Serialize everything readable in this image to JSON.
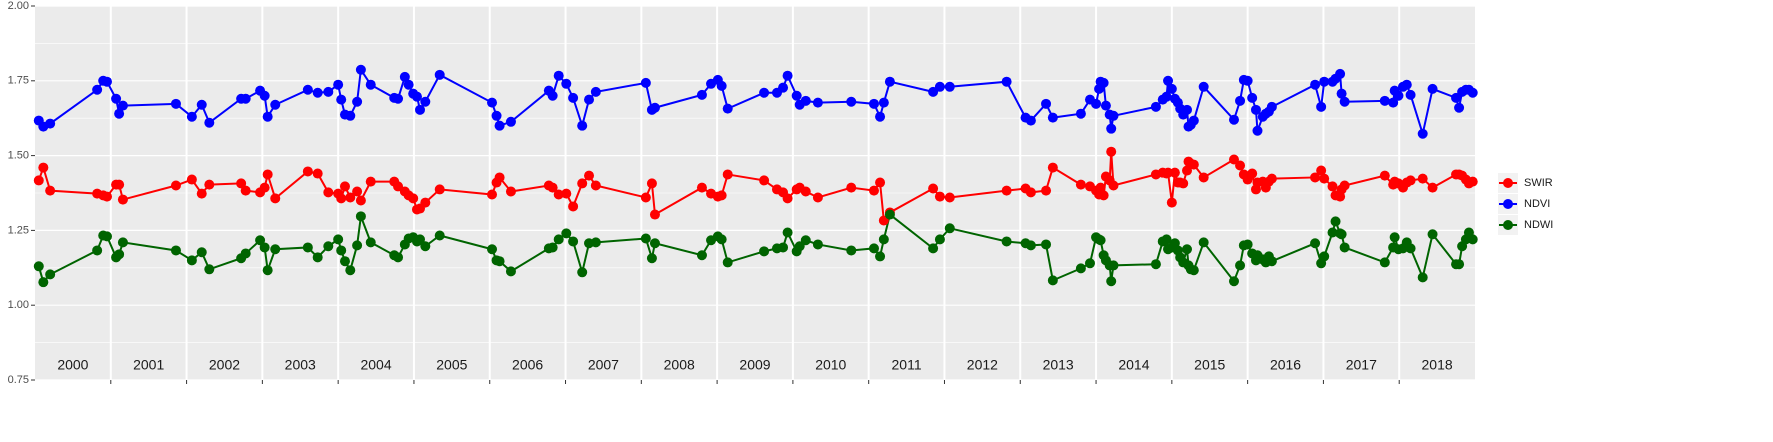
{
  "chart_data": {
    "type": "line",
    "x": [
      2000.05,
      2000.11,
      2000.2,
      2000.82,
      2000.9,
      2000.95,
      2001.07,
      2001.11,
      2001.16,
      2001.86,
      2002.07,
      2002.2,
      2002.3,
      2002.72,
      2002.78,
      2002.97,
      2003.03,
      2003.07,
      2003.17,
      2003.6,
      2003.73,
      2003.87,
      2004.0,
      2004.04,
      2004.09,
      2004.16,
      2004.25,
      2004.3,
      2004.43,
      2004.74,
      2004.79,
      2004.88,
      2004.93,
      2004.99,
      2005.04,
      2005.08,
      2005.15,
      2005.34,
      2006.03,
      2006.09,
      2006.13,
      2006.28,
      2006.78,
      2006.83,
      2006.91,
      2007.01,
      2007.1,
      2007.22,
      2007.31,
      2007.4,
      2008.06,
      2008.14,
      2008.18,
      2008.8,
      2008.92,
      2009.01,
      2009.06,
      2009.14,
      2009.62,
      2009.79,
      2009.87,
      2009.93,
      2010.05,
      2010.09,
      2010.17,
      2010.33,
      2010.77,
      2011.07,
      2011.15,
      2011.2,
      2011.28,
      2011.85,
      2011.94,
      2012.07,
      2012.82,
      2013.07,
      2013.14,
      2013.34,
      2013.43,
      2013.8,
      2013.92,
      2014.0,
      2014.04,
      2014.06,
      2014.1,
      2014.13,
      2014.18,
      2014.2,
      2014.23,
      2014.79,
      2014.88,
      2014.93,
      2014.95,
      2015.0,
      2015.04,
      2015.08,
      2015.11,
      2015.15,
      2015.2,
      2015.22,
      2015.25,
      2015.29,
      2015.42,
      2015.82,
      2015.9,
      2015.95,
      2016.0,
      2016.06,
      2016.11,
      2016.13,
      2016.2,
      2016.24,
      2016.28,
      2016.32,
      2016.89,
      2016.97,
      2017.01,
      2017.12,
      2017.16,
      2017.22,
      2017.24,
      2017.28,
      2017.81,
      2017.92,
      2017.94,
      2017.99,
      2018.05,
      2018.1,
      2018.15,
      2018.31,
      2018.44,
      2018.75,
      2018.79,
      2018.83,
      2018.88,
      2018.92,
      2018.97
    ],
    "series": [
      {
        "name": "SWIR",
        "color": "#ff0000",
        "values": [
          1.417,
          1.46,
          1.383,
          1.373,
          1.367,
          1.363,
          1.403,
          1.403,
          1.353,
          1.4,
          1.42,
          1.373,
          1.403,
          1.407,
          1.383,
          1.377,
          1.393,
          1.437,
          1.357,
          1.447,
          1.44,
          1.377,
          1.373,
          1.357,
          1.397,
          1.36,
          1.38,
          1.35,
          1.413,
          1.413,
          1.397,
          1.38,
          1.367,
          1.357,
          1.32,
          1.323,
          1.343,
          1.387,
          1.37,
          1.41,
          1.427,
          1.38,
          1.4,
          1.393,
          1.37,
          1.373,
          1.33,
          1.407,
          1.433,
          1.4,
          1.36,
          1.407,
          1.303,
          1.393,
          1.373,
          1.363,
          1.367,
          1.437,
          1.417,
          1.387,
          1.377,
          1.357,
          1.387,
          1.393,
          1.38,
          1.36,
          1.393,
          1.383,
          1.41,
          1.283,
          1.31,
          1.39,
          1.363,
          1.36,
          1.383,
          1.39,
          1.377,
          1.383,
          1.46,
          1.403,
          1.397,
          1.383,
          1.37,
          1.393,
          1.367,
          1.43,
          1.417,
          1.513,
          1.4,
          1.437,
          1.443,
          1.44,
          1.443,
          1.343,
          1.443,
          1.41,
          1.41,
          1.407,
          1.45,
          1.48,
          1.473,
          1.47,
          1.427,
          1.487,
          1.467,
          1.437,
          1.42,
          1.44,
          1.387,
          1.41,
          1.413,
          1.393,
          1.413,
          1.423,
          1.427,
          1.45,
          1.423,
          1.397,
          1.367,
          1.363,
          1.387,
          1.4,
          1.433,
          1.403,
          1.413,
          1.407,
          1.393,
          1.41,
          1.417,
          1.423,
          1.393,
          1.437,
          1.437,
          1.433,
          1.42,
          1.407,
          1.413
        ]
      },
      {
        "name": "NDVI",
        "color": "#0000ff",
        "values": [
          1.617,
          1.597,
          1.607,
          1.72,
          1.75,
          1.747,
          1.69,
          1.64,
          1.667,
          1.673,
          1.63,
          1.67,
          1.61,
          1.69,
          1.69,
          1.717,
          1.7,
          1.63,
          1.67,
          1.72,
          1.71,
          1.713,
          1.737,
          1.687,
          1.637,
          1.633,
          1.68,
          1.787,
          1.737,
          1.693,
          1.69,
          1.763,
          1.737,
          1.707,
          1.697,
          1.653,
          1.68,
          1.77,
          1.677,
          1.633,
          1.6,
          1.613,
          1.717,
          1.7,
          1.767,
          1.74,
          1.693,
          1.6,
          1.687,
          1.713,
          1.743,
          1.653,
          1.66,
          1.703,
          1.74,
          1.753,
          1.733,
          1.657,
          1.71,
          1.71,
          1.727,
          1.767,
          1.7,
          1.67,
          1.683,
          1.677,
          1.68,
          1.673,
          1.63,
          1.677,
          1.747,
          1.713,
          1.73,
          1.73,
          1.747,
          1.627,
          1.617,
          1.673,
          1.627,
          1.64,
          1.687,
          1.673,
          1.723,
          1.747,
          1.743,
          1.667,
          1.637,
          1.59,
          1.633,
          1.663,
          1.687,
          1.697,
          1.75,
          1.723,
          1.69,
          1.677,
          1.657,
          1.637,
          1.653,
          1.597,
          1.603,
          1.617,
          1.73,
          1.62,
          1.683,
          1.753,
          1.75,
          1.693,
          1.653,
          1.583,
          1.63,
          1.64,
          1.647,
          1.663,
          1.737,
          1.663,
          1.747,
          1.747,
          1.757,
          1.773,
          1.707,
          1.68,
          1.683,
          1.677,
          1.717,
          1.7,
          1.73,
          1.737,
          1.703,
          1.573,
          1.723,
          1.693,
          1.66,
          1.713,
          1.72,
          1.72,
          1.71
        ]
      },
      {
        "name": "NDWI",
        "color": "#006400",
        "values": [
          1.13,
          1.077,
          1.103,
          1.183,
          1.233,
          1.23,
          1.16,
          1.17,
          1.21,
          1.183,
          1.15,
          1.177,
          1.12,
          1.157,
          1.173,
          1.217,
          1.193,
          1.117,
          1.187,
          1.193,
          1.16,
          1.197,
          1.22,
          1.183,
          1.147,
          1.117,
          1.2,
          1.297,
          1.21,
          1.167,
          1.16,
          1.203,
          1.223,
          1.227,
          1.213,
          1.22,
          1.197,
          1.233,
          1.187,
          1.15,
          1.147,
          1.113,
          1.19,
          1.193,
          1.22,
          1.24,
          1.213,
          1.11,
          1.207,
          1.21,
          1.223,
          1.157,
          1.207,
          1.167,
          1.217,
          1.23,
          1.22,
          1.143,
          1.18,
          1.19,
          1.193,
          1.243,
          1.18,
          1.197,
          1.217,
          1.203,
          1.183,
          1.19,
          1.163,
          1.22,
          1.303,
          1.19,
          1.22,
          1.257,
          1.213,
          1.207,
          1.2,
          1.203,
          1.083,
          1.123,
          1.14,
          1.227,
          1.22,
          1.217,
          1.167,
          1.15,
          1.133,
          1.08,
          1.133,
          1.137,
          1.213,
          1.22,
          1.187,
          1.193,
          1.207,
          1.183,
          1.16,
          1.143,
          1.187,
          1.133,
          1.12,
          1.117,
          1.21,
          1.08,
          1.133,
          1.2,
          1.203,
          1.173,
          1.15,
          1.167,
          1.153,
          1.143,
          1.163,
          1.147,
          1.207,
          1.14,
          1.163,
          1.243,
          1.28,
          1.24,
          1.237,
          1.193,
          1.143,
          1.193,
          1.227,
          1.187,
          1.19,
          1.21,
          1.19,
          1.093,
          1.237,
          1.137,
          1.137,
          1.197,
          1.22,
          1.243,
          1.22
        ]
      }
    ],
    "xlim": [
      2000,
      2019
    ],
    "xticks": [
      2001,
      2002,
      2003,
      2004,
      2005,
      2006,
      2007,
      2008,
      2009,
      2010,
      2011,
      2012,
      2013,
      2014,
      2015,
      2016,
      2017,
      2018
    ],
    "year_labels": [
      2000,
      2001,
      2002,
      2003,
      2004,
      2005,
      2006,
      2007,
      2008,
      2009,
      2010,
      2011,
      2012,
      2013,
      2014,
      2015,
      2016,
      2017,
      2018
    ],
    "ylim": [
      0.75,
      2.0
    ],
    "yticks": [
      {
        "value": 0.75,
        "label": "0.75"
      },
      {
        "value": 1.0,
        "label": "1.00"
      },
      {
        "value": 1.25,
        "label": "1.25"
      },
      {
        "value": 1.5,
        "label": "1.50"
      },
      {
        "value": 1.75,
        "label": "1.75"
      },
      {
        "value": 2.0,
        "label": "2.00"
      }
    ],
    "grid": true,
    "legend": "right"
  }
}
